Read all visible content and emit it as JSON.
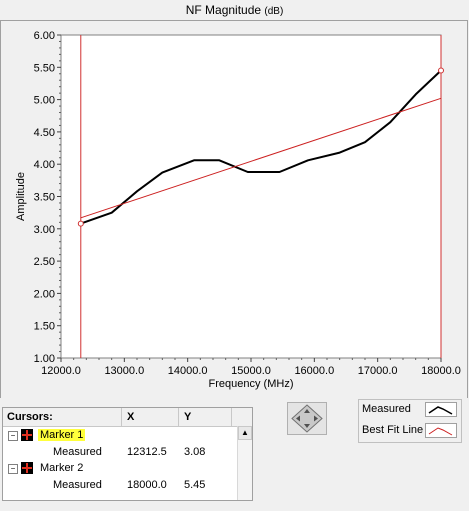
{
  "window": {
    "title": "NF Magnitude",
    "title_unit": "(dB)"
  },
  "chart_data": {
    "type": "line",
    "title": "NF Magnitude (dB)",
    "xlabel": "Frequency (MHz)",
    "ylabel": "Amplitude",
    "xlim": [
      12000.0,
      18000.0
    ],
    "ylim": [
      1.0,
      6.0
    ],
    "x_ticks": [
      "12000.0",
      "13000.0",
      "14000.0",
      "15000.0",
      "16000.0",
      "17000.0",
      "18000.0"
    ],
    "y_ticks": [
      "1.00",
      "1.50",
      "2.00",
      "2.50",
      "3.00",
      "3.50",
      "4.00",
      "4.50",
      "5.00",
      "5.50",
      "6.00"
    ],
    "grid": false,
    "legend": "bottom-right, outside",
    "series": [
      {
        "name": "Measured",
        "color": "#000000",
        "x": [
          12312.5,
          12800,
          13200,
          13600,
          14100,
          14500,
          14950,
          15450,
          15900,
          16400,
          16800,
          17200,
          17600,
          18000
        ],
        "y": [
          3.08,
          3.25,
          3.58,
          3.87,
          4.06,
          4.06,
          3.88,
          3.88,
          4.06,
          4.18,
          4.34,
          4.65,
          5.08,
          5.45
        ]
      },
      {
        "name": "Best Fit Line",
        "color": "#cc2020",
        "x": [
          12312.5,
          18000
        ],
        "y": [
          3.17,
          5.02
        ]
      }
    ],
    "cursors": [
      {
        "name": "Marker 1",
        "x": 12312.5,
        "y": 3.08
      },
      {
        "name": "Marker 2",
        "x": 18000.0,
        "y": 5.45
      }
    ]
  },
  "cursor_table": {
    "header": {
      "name": "Cursors:",
      "x": "X",
      "y": "Y"
    },
    "rows": [
      {
        "label": "Marker 1",
        "sub_label": "Measured",
        "x": "12312.5",
        "y": "3.08"
      },
      {
        "label": "Marker 2",
        "sub_label": "Measured",
        "x": "18000.0",
        "y": "5.45"
      }
    ]
  },
  "legend": {
    "items": [
      {
        "label": "Measured"
      },
      {
        "label": "Best Fit Line"
      }
    ]
  },
  "colors": {
    "plot_bg": "#ffffff",
    "cursor_line": "#d03030",
    "highlight": "#ffff3c"
  }
}
